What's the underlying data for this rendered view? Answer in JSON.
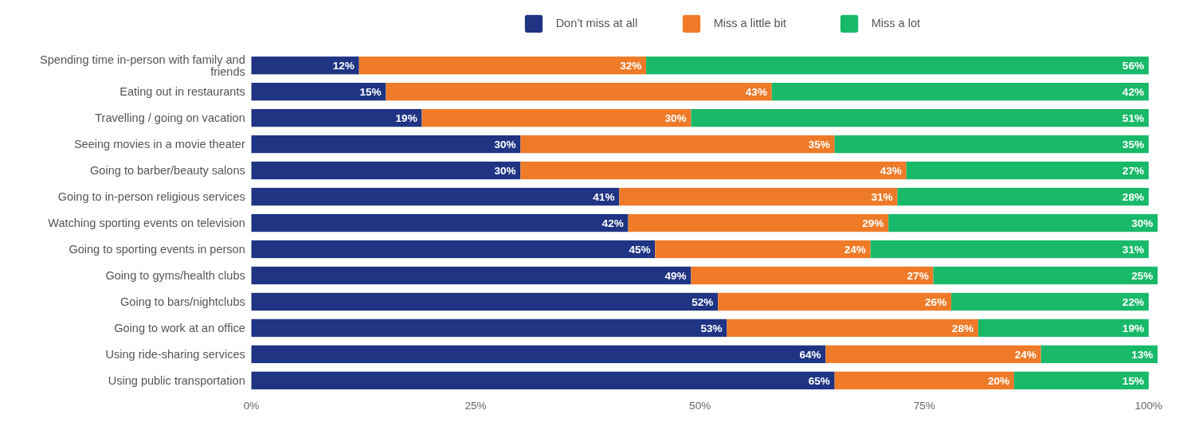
{
  "chart_data": {
    "type": "bar",
    "orientation": "horizontal",
    "stacked": true,
    "legend": "top",
    "grid": false,
    "categories": [
      "Spending time in-person with family and friends",
      "Eating out in restaurants",
      "Travelling / going on vacation",
      "Seeing movies in a movie theater",
      "Going to barber/beauty salons",
      "Going to in-person religious services",
      "Watching sporting events on television",
      "Going to sporting events in person",
      "Going to gyms/health clubs",
      "Going to bars/nightclubs",
      "Going to work at an office",
      "Using ride-sharing services",
      "Using public transportation"
    ],
    "series": [
      {
        "name": "Don’t miss at all",
        "color": "#1f3483",
        "values": [
          12,
          15,
          19,
          30,
          30,
          41,
          42,
          45,
          49,
          52,
          53,
          64,
          65
        ],
        "value_labels": [
          "12%",
          "15%",
          "19%",
          "30%",
          "30%",
          "41%",
          "42%",
          "45%",
          "49%",
          "52%",
          "53%",
          "64%",
          "65%"
        ]
      },
      {
        "name": "Miss a little bit",
        "color": "#ef7a28",
        "values": [
          32,
          43,
          30,
          35,
          43,
          31,
          29,
          24,
          27,
          26,
          28,
          24,
          20
        ],
        "value_labels": [
          "32%",
          "43%",
          "30%",
          "35%",
          "43%",
          "31%",
          "29%",
          "24%",
          "27%",
          "26%",
          "28%",
          "24%",
          "20%"
        ]
      },
      {
        "name": "Miss a lot",
        "color": "#19b96a",
        "values": [
          56,
          42,
          51,
          35,
          27,
          28,
          30,
          31,
          25,
          22,
          19,
          13,
          15
        ],
        "value_labels": [
          "56%",
          "42%",
          "51%",
          "35%",
          "27%",
          "28%",
          "30%",
          "31%",
          "25%",
          "22%",
          "19%",
          "13%",
          "15%"
        ]
      }
    ],
    "xlim": [
      0,
      101
    ],
    "xticks": [
      {
        "value": 0,
        "label": "0%"
      },
      {
        "value": 25,
        "label": "25%"
      },
      {
        "value": 50,
        "label": "50%"
      },
      {
        "value": 75,
        "label": "75%"
      },
      {
        "value": 100,
        "label": "100%"
      }
    ]
  }
}
